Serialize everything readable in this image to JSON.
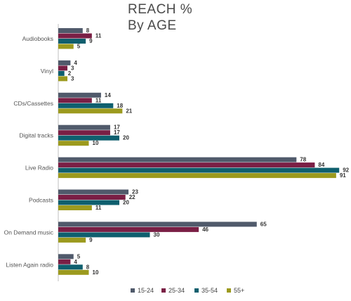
{
  "chart_data": {
    "type": "bar",
    "orientation": "horizontal",
    "title": "REACH %",
    "subtitle": "By AGE",
    "categories": [
      "Audiobooks",
      "Vinyl",
      "CDs/Cassettes",
      "Digital tracks",
      "Live Radio",
      "Podcasts",
      "On Demand music",
      "Listen Again radio"
    ],
    "series": [
      {
        "name": "15-24",
        "color": "#505a6b",
        "values": [
          8,
          4,
          14,
          17,
          78,
          23,
          65,
          5
        ]
      },
      {
        "name": "25-34",
        "color": "#7a1f45",
        "values": [
          11,
          3,
          11,
          17,
          84,
          22,
          46,
          4
        ]
      },
      {
        "name": "35-54",
        "color": "#0f5f6e",
        "values": [
          9,
          2,
          18,
          20,
          92,
          20,
          30,
          8
        ]
      },
      {
        "name": "55+",
        "color": "#9c9a1e",
        "values": [
          5,
          3,
          21,
          10,
          91,
          11,
          9,
          10
        ]
      }
    ],
    "xlim": [
      0,
      100
    ],
    "legend_position": "bottom",
    "grid": false
  }
}
